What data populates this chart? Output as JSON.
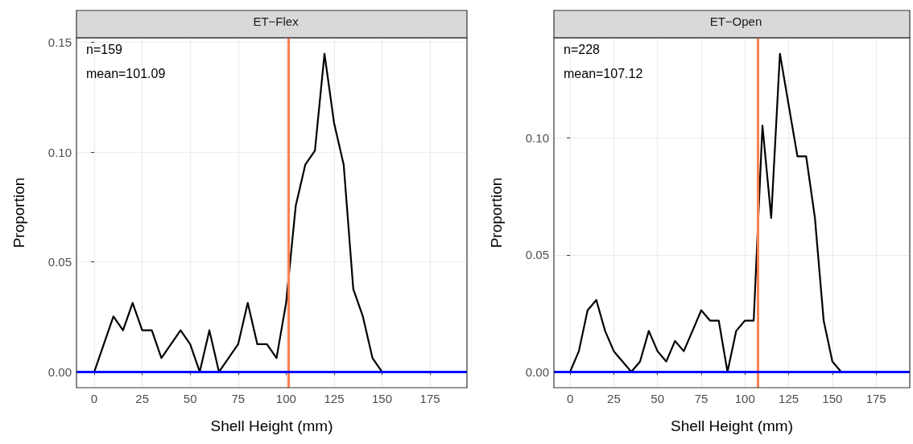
{
  "chart_data": [
    {
      "type": "line",
      "title": "ET−Flex",
      "xlabel": "Shell Height (mm)",
      "ylabel": "Proportion",
      "x": [
        0,
        5,
        10,
        15,
        20,
        25,
        30,
        35,
        40,
        45,
        50,
        55,
        60,
        65,
        70,
        75,
        80,
        85,
        90,
        95,
        100,
        105,
        110,
        115,
        120,
        125,
        130,
        135,
        140,
        145,
        150,
        155,
        160,
        165,
        170,
        175,
        180,
        185
      ],
      "series": [
        {
          "color": "#000000",
          "values": [
            0,
            0.0126,
            0.0252,
            0.0189,
            0.0314,
            0.0189,
            0.0189,
            0.0063,
            0.0126,
            0.0189,
            0.0126,
            0,
            0.0189,
            0,
            0.0063,
            0.0126,
            0.0314,
            0.0126,
            0.0126,
            0.0063,
            0.0314,
            0.0755,
            0.0943,
            0.1006,
            0.1447,
            0.1132,
            0.0943,
            0.0377,
            0.0252,
            0.0063,
            0,
            0,
            0,
            0,
            0,
            0,
            0,
            0
          ]
        }
      ],
      "xlim": [
        -9.25,
        194.25
      ],
      "xticks": [
        0,
        25,
        50,
        75,
        100,
        125,
        150,
        175
      ],
      "ylim": [
        -0.0072,
        0.152
      ],
      "yticks": [
        {
          "value": 0,
          "label": "0.00"
        },
        {
          "value": 0.05,
          "label": "0.05"
        },
        {
          "value": 0.1,
          "label": "0.10"
        },
        {
          "value": 0.15,
          "label": "0.15"
        }
      ],
      "ref_lines": [
        {
          "axis": "x",
          "value": 101.09,
          "color": "#ff7f50"
        },
        {
          "axis": "y",
          "value": 0,
          "color": "#0000ff"
        }
      ],
      "annotations": [
        "n=159",
        "mean=101.09"
      ],
      "grid": true,
      "marker": "none",
      "line_style": "solid"
    },
    {
      "type": "line",
      "title": "ET−Open",
      "xlabel": "Shell Height (mm)",
      "ylabel": "Proportion",
      "x": [
        0,
        5,
        10,
        15,
        20,
        25,
        30,
        35,
        40,
        45,
        50,
        55,
        60,
        65,
        70,
        75,
        80,
        85,
        90,
        95,
        100,
        105,
        110,
        115,
        120,
        125,
        130,
        135,
        140,
        145,
        150,
        155,
        160,
        165,
        170,
        175,
        180,
        185
      ],
      "series": [
        {
          "color": "#000000",
          "values": [
            0,
            0.0088,
            0.0263,
            0.0307,
            0.0175,
            0.0088,
            0.0044,
            0,
            0.0044,
            0.0175,
            0.0088,
            0.0044,
            0.0132,
            0.0088,
            0.0175,
            0.0263,
            0.0219,
            0.0219,
            0,
            0.0175,
            0.0219,
            0.0219,
            0.1053,
            0.0658,
            0.136,
            0.114,
            0.0921,
            0.0921,
            0.0658,
            0.0219,
            0.0044,
            0,
            0,
            0,
            0,
            0,
            0,
            0
          ]
        }
      ],
      "xlim": [
        -9.25,
        194.25
      ],
      "xticks": [
        0,
        25,
        50,
        75,
        100,
        125,
        150,
        175
      ],
      "ylim": [
        -0.0068,
        0.1428
      ],
      "yticks": [
        {
          "value": 0,
          "label": "0.00"
        },
        {
          "value": 0.05,
          "label": "0.05"
        },
        {
          "value": 0.1,
          "label": "0.10"
        }
      ],
      "ref_lines": [
        {
          "axis": "x",
          "value": 107.12,
          "color": "#ff7f50"
        },
        {
          "axis": "y",
          "value": 0,
          "color": "#0000ff"
        }
      ],
      "annotations": [
        "n=228",
        "mean=107.12"
      ],
      "grid": true,
      "marker": "none",
      "line_style": "solid"
    }
  ]
}
